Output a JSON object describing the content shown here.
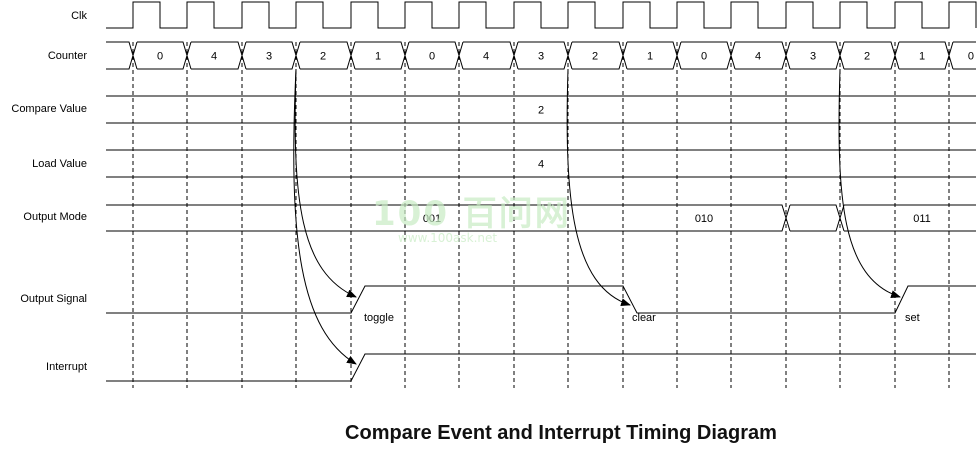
{
  "signals": {
    "clk": "Clk",
    "counter": "Counter",
    "compare_value": "Compare Value",
    "load_value": "Load Value",
    "output_mode": "Output Mode",
    "output_signal": "Output Signal",
    "interrupt": "Interrupt"
  },
  "counter_values": [
    "0",
    "4",
    "3",
    "2",
    "1",
    "0",
    "4",
    "3",
    "2",
    "1",
    "0",
    "4",
    "3",
    "2",
    "1",
    "0"
  ],
  "compare_value": "2",
  "load_value": "4",
  "output_mode_values": [
    "001",
    "010",
    "011"
  ],
  "annotations": {
    "toggle": "toggle",
    "clear": "clear",
    "set": "set"
  },
  "watermark": {
    "main": "100 百问网",
    "url": "www.100ask.net"
  },
  "title": "Compare Event and Interrupt Timing Diagram",
  "colors": {
    "line": "#000000",
    "watermark": "#c8ecc4"
  }
}
